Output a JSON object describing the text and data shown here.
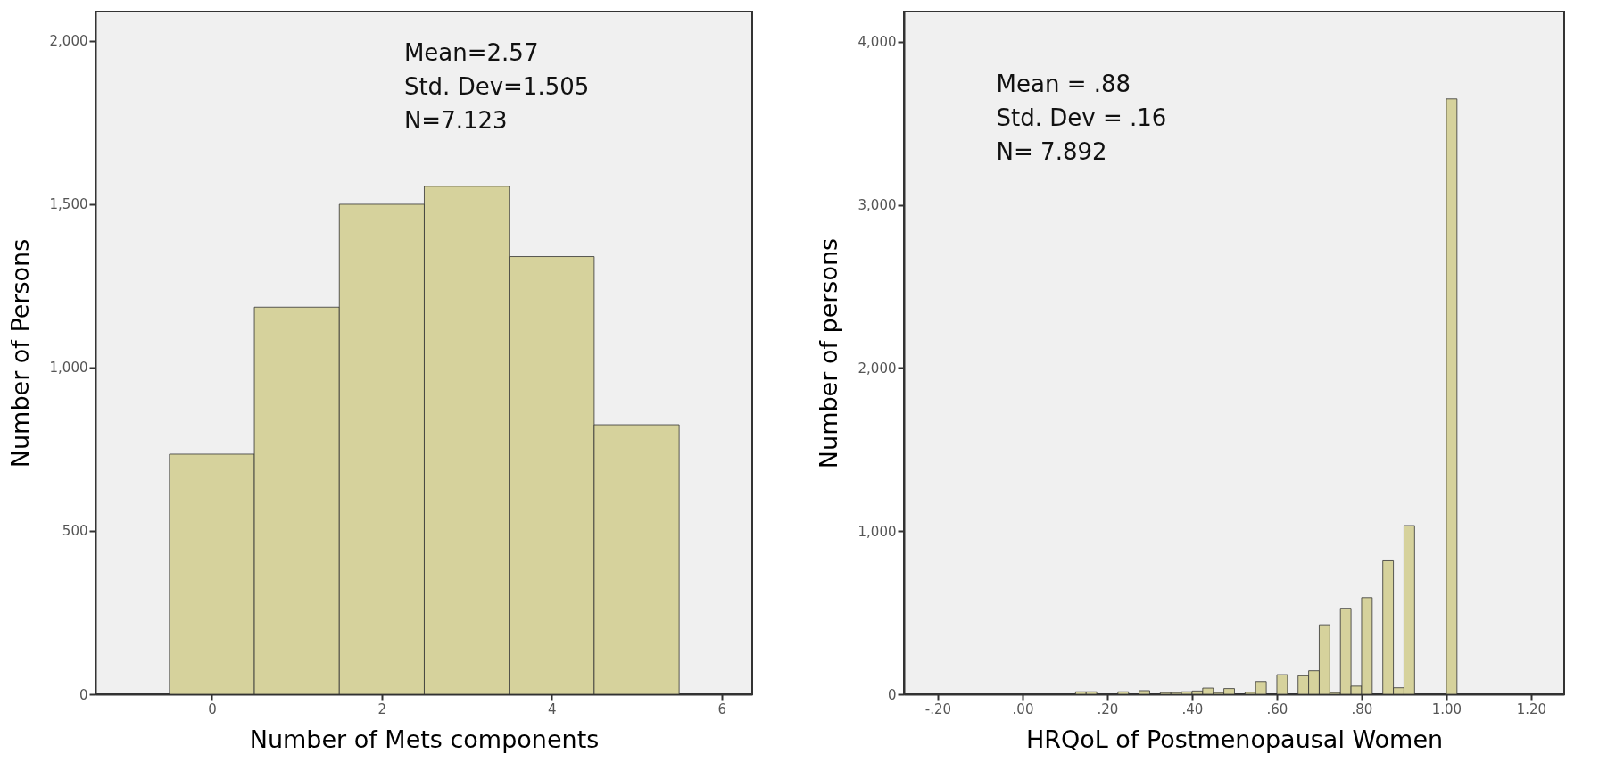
{
  "chart_data": [
    {
      "type": "histogram",
      "xlabel": "Number of Mets components",
      "ylabel": "Number of Persons",
      "color": "#d6d29c",
      "bins": [
        -0.5,
        0.5,
        1.5,
        2.5,
        3.5,
        4.5,
        5.5
      ],
      "values": [
        735,
        1185,
        1500,
        1555,
        1340,
        825
      ],
      "xlim": [
        -1.37,
        6.36
      ],
      "ylim": [
        0,
        2090
      ],
      "xticks": [
        {
          "value": 0,
          "label": "0"
        },
        2,
        4,
        6
      ],
      "yticks": [
        {
          "value": 0,
          "label": "0"
        },
        500,
        {
          "value": 1000,
          "label": "1,000"
        },
        {
          "value": 1500,
          "label": "1,500"
        },
        {
          "value": 2000,
          "label": "2,000"
        }
      ],
      "annotations": [
        "Mean=2.57",
        "Std. Dev=1.505",
        "N=7.123"
      ]
    },
    {
      "type": "histogram",
      "xlabel": "HRQoL of Postmenopausal Women",
      "ylabel": "Number of persons",
      "color": "#d6d29c",
      "bins": [
        -0.2,
        -0.175,
        -0.15,
        -0.125,
        -0.1,
        -0.075,
        -0.05,
        -0.025,
        0,
        0.025,
        0.05,
        0.075,
        0.1,
        0.125,
        0.15,
        0.175,
        0.2,
        0.225,
        0.25,
        0.275,
        0.3,
        0.325,
        0.35,
        0.375,
        0.4,
        0.425,
        0.45,
        0.475,
        0.5,
        0.525,
        0.55,
        0.575,
        0.6,
        0.625,
        0.65,
        0.675,
        0.7,
        0.725,
        0.75,
        0.775,
        0.8,
        0.825,
        0.85,
        0.875,
        0.9,
        0.925,
        0.95,
        0.975,
        1.0,
        1.025
      ],
      "values": [
        null,
        null,
        null,
        null,
        null,
        null,
        null,
        null,
        null,
        null,
        null,
        null,
        null,
        15,
        15,
        null,
        null,
        15,
        null,
        22,
        null,
        10,
        10,
        15,
        20,
        38,
        10,
        35,
        null,
        12,
        78,
        null,
        120,
        null,
        113,
        144,
        426,
        10,
        527,
        50,
        592,
        null,
        818,
        40,
        1034,
        null,
        null,
        null,
        3650
      ],
      "xlim": [
        -0.28,
        1.278
      ],
      "ylim": [
        0,
        4185
      ],
      "xticks": [
        {
          "value": -0.2,
          "label": "-.20"
        },
        {
          "value": 0,
          "label": ".00"
        },
        {
          "value": 0.2,
          "label": ".20"
        },
        {
          "value": 0.4,
          "label": ".40"
        },
        {
          "value": 0.6,
          "label": ".60"
        },
        {
          "value": 0.8,
          "label": ".80"
        },
        {
          "value": 1,
          "label": "1.00"
        },
        {
          "value": 1.2,
          "label": "1.20"
        }
      ],
      "yticks": [
        {
          "value": 0,
          "label": "0"
        },
        {
          "value": 1000,
          "label": "1,000"
        },
        {
          "value": 2000,
          "label": "2,000"
        },
        {
          "value": 3000,
          "label": "3,000"
        },
        {
          "value": 4000,
          "label": "4,000"
        }
      ],
      "annotations": [
        "Mean = .88",
        "Std. Dev = .16",
        "N= 7.892"
      ]
    }
  ]
}
